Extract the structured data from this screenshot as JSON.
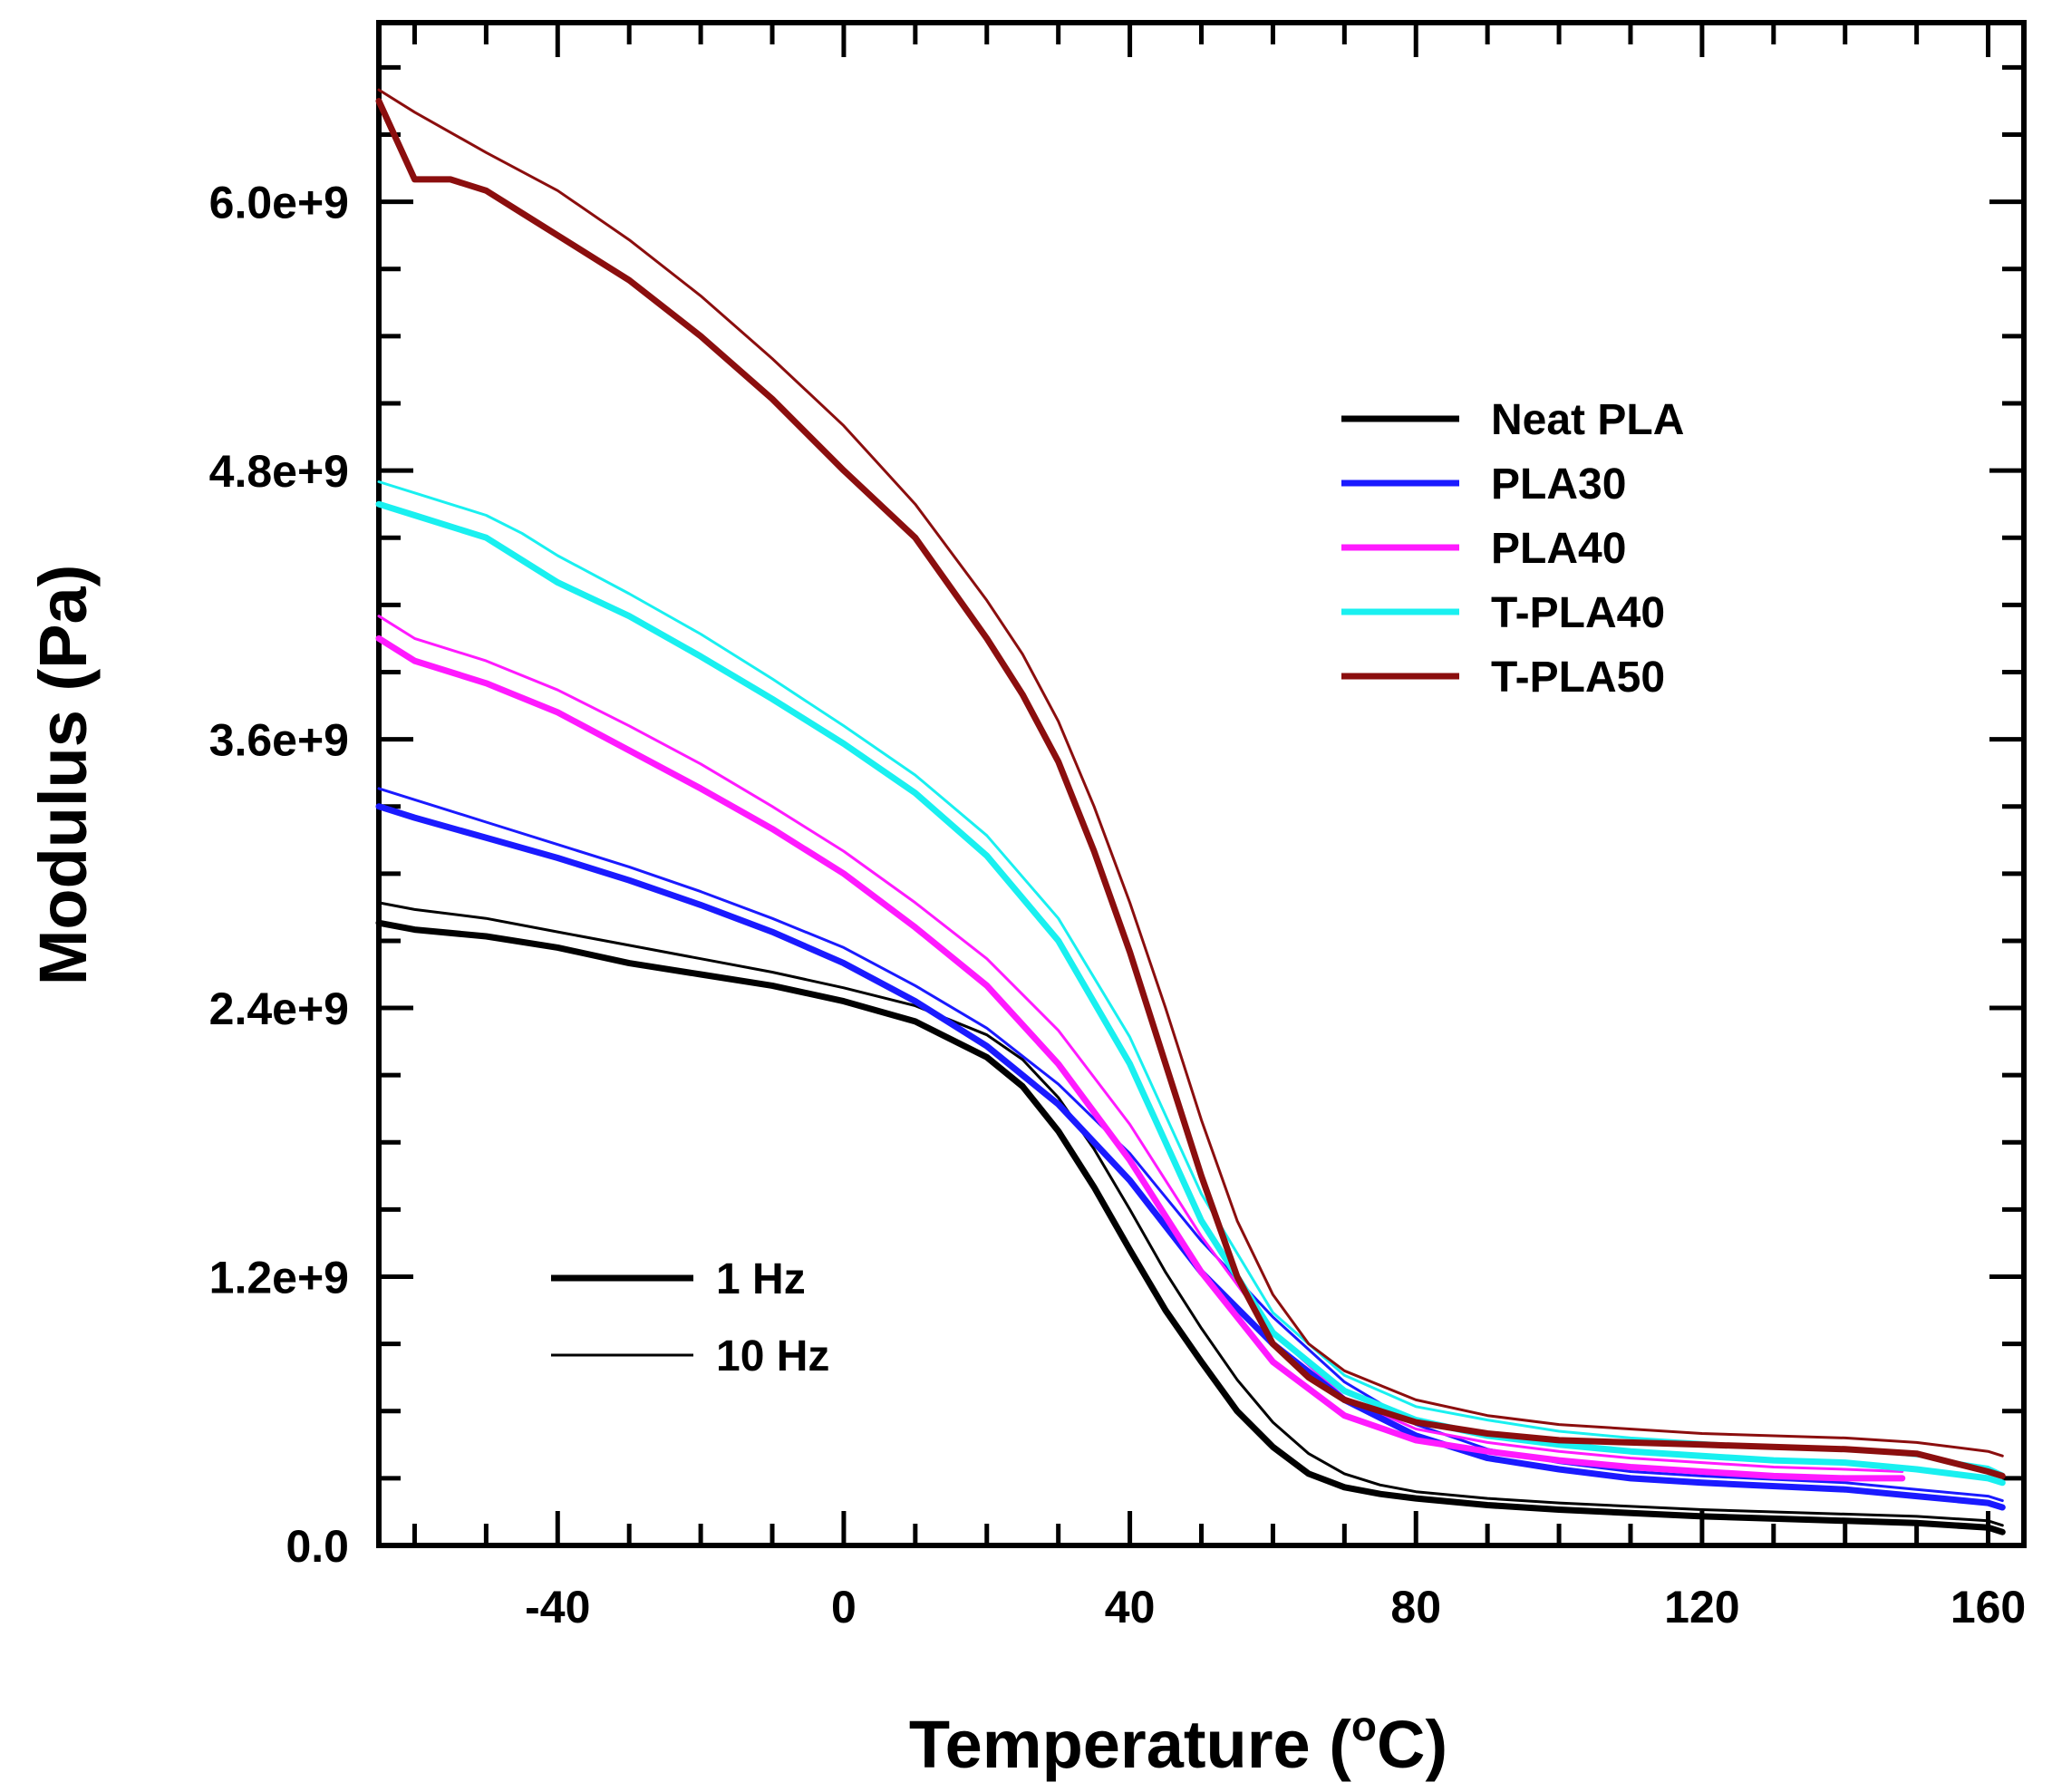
{
  "chart_data": {
    "type": "line",
    "title": "",
    "xlabel_main": "Temperature (",
    "xlabel_sup": "o",
    "xlabel_tail": "C)",
    "ylabel": "Modulus (Pa)",
    "xlim": [
      -65,
      165
    ],
    "ylim": [
      0,
      6800000000.0
    ],
    "x_ticks": [
      -40,
      0,
      40,
      80,
      120,
      160
    ],
    "x_tick_labels": [
      "-40",
      "0",
      "40",
      "80",
      "120",
      "160"
    ],
    "y_ticks": [
      0,
      1200000000.0,
      2400000000.0,
      3600000000.0,
      4800000000.0,
      6000000000.0
    ],
    "y_tick_labels": [
      "0.0",
      "1.2e+9",
      "2.4e+9",
      "3.6e+9",
      "4.8e+9",
      "6.0e+9"
    ],
    "legend_materials": [
      {
        "label": "Neat PLA",
        "color": "#000000"
      },
      {
        "label": "PLA30",
        "color": "#1a1aff"
      },
      {
        "label": "PLA40",
        "color": "#ff1aff"
      },
      {
        "label": "T-PLA40",
        "color": "#19f0f0"
      },
      {
        "label": "T-PLA50",
        "color": "#8b0e0e"
      }
    ],
    "legend_frequency": [
      {
        "label": "1 Hz",
        "style": "thick"
      },
      {
        "label": "10 Hz",
        "style": "thin"
      }
    ],
    "series": [
      {
        "name": "Neat PLA",
        "frequency": "1 Hz",
        "color": "#000000",
        "x": [
          -65,
          -60,
          -50,
          -40,
          -30,
          -20,
          -10,
          0,
          10,
          20,
          25,
          30,
          35,
          40,
          45,
          50,
          55,
          60,
          65,
          70,
          75,
          80,
          90,
          100,
          120,
          140,
          150,
          160,
          162
        ],
        "values": [
          2780000000.0,
          2750000000.0,
          2720000000.0,
          2670000000.0,
          2600000000.0,
          2550000000.0,
          2500000000.0,
          2430000000.0,
          2340000000.0,
          2180000000.0,
          2050000000.0,
          1850000000.0,
          1600000000.0,
          1320000000.0,
          1050000000.0,
          820000000.0,
          600000000.0,
          440000000.0,
          320000000.0,
          260000000.0,
          230000000.0,
          210000000.0,
          180000000.0,
          160000000.0,
          130000000.0,
          110000000.0,
          100000000.0,
          80000000.0,
          60000000.0
        ]
      },
      {
        "name": "Neat PLA",
        "frequency": "10 Hz",
        "color": "#000000",
        "x": [
          -65,
          -60,
          -50,
          -40,
          -30,
          -20,
          -10,
          0,
          10,
          20,
          25,
          30,
          35,
          40,
          45,
          50,
          55,
          60,
          65,
          70,
          75,
          80,
          90,
          100,
          120,
          140,
          150,
          160,
          162
        ],
        "values": [
          2870000000.0,
          2840000000.0,
          2800000000.0,
          2740000000.0,
          2680000000.0,
          2620000000.0,
          2560000000.0,
          2490000000.0,
          2410000000.0,
          2280000000.0,
          2170000000.0,
          2000000000.0,
          1770000000.0,
          1500000000.0,
          1220000000.0,
          970000000.0,
          740000000.0,
          550000000.0,
          410000000.0,
          320000000.0,
          270000000.0,
          240000000.0,
          210000000.0,
          190000000.0,
          160000000.0,
          140000000.0,
          130000000.0,
          110000000.0,
          90000000.0
        ]
      },
      {
        "name": "PLA30",
        "frequency": "1 Hz",
        "color": "#1a1aff",
        "x": [
          -65,
          -60,
          -50,
          -40,
          -30,
          -20,
          -10,
          0,
          10,
          20,
          30,
          40,
          50,
          60,
          70,
          80,
          90,
          100,
          110,
          120,
          140,
          150,
          160,
          162
        ],
        "values": [
          3300000000.0,
          3250000000.0,
          3160000000.0,
          3070000000.0,
          2970000000.0,
          2860000000.0,
          2740000000.0,
          2600000000.0,
          2430000000.0,
          2230000000.0,
          1970000000.0,
          1630000000.0,
          1220000000.0,
          900000000.0,
          650000000.0,
          490000000.0,
          390000000.0,
          340000000.0,
          300000000.0,
          280000000.0,
          250000000.0,
          220000000.0,
          190000000.0,
          170000000.0
        ]
      },
      {
        "name": "PLA30",
        "frequency": "10 Hz",
        "color": "#1a1aff",
        "x": [
          -65,
          -60,
          -50,
          -40,
          -30,
          -20,
          -10,
          0,
          10,
          20,
          30,
          40,
          50,
          60,
          70,
          80,
          90,
          100,
          110,
          120,
          140,
          150,
          160,
          162
        ],
        "values": [
          3380000000.0,
          3330000000.0,
          3230000000.0,
          3130000000.0,
          3030000000.0,
          2920000000.0,
          2800000000.0,
          2670000000.0,
          2500000000.0,
          2310000000.0,
          2060000000.0,
          1750000000.0,
          1360000000.0,
          1020000000.0,
          730000000.0,
          540000000.0,
          430000000.0,
          370000000.0,
          330000000.0,
          310000000.0,
          280000000.0,
          250000000.0,
          220000000.0,
          200000000.0
        ]
      },
      {
        "name": "PLA40",
        "frequency": "1 Hz",
        "color": "#ff1aff",
        "x": [
          -65,
          -60,
          -50,
          -40,
          -30,
          -20,
          -10,
          0,
          10,
          20,
          30,
          40,
          50,
          60,
          70,
          80,
          90,
          100,
          110,
          120,
          130,
          140,
          148
        ],
        "values": [
          4050000000.0,
          3950000000.0,
          3850000000.0,
          3720000000.0,
          3550000000.0,
          3380000000.0,
          3200000000.0,
          3000000000.0,
          2760000000.0,
          2500000000.0,
          2150000000.0,
          1720000000.0,
          1220000000.0,
          820000000.0,
          580000000.0,
          470000000.0,
          420000000.0,
          380000000.0,
          350000000.0,
          330000000.0,
          310000000.0,
          300000000.0,
          300000000.0
        ]
      },
      {
        "name": "PLA40",
        "frequency": "10 Hz",
        "color": "#ff1aff",
        "x": [
          -65,
          -60,
          -50,
          -40,
          -30,
          -20,
          -10,
          0,
          10,
          20,
          30,
          40,
          50,
          60,
          70,
          80,
          90,
          100,
          110,
          120,
          130,
          140,
          148
        ],
        "values": [
          4150000000.0,
          4050000000.0,
          3950000000.0,
          3820000000.0,
          3660000000.0,
          3490000000.0,
          3300000000.0,
          3100000000.0,
          2870000000.0,
          2620000000.0,
          2300000000.0,
          1880000000.0,
          1380000000.0,
          950000000.0,
          660000000.0,
          520000000.0,
          460000000.0,
          420000000.0,
          390000000.0,
          370000000.0,
          350000000.0,
          340000000.0,
          330000000.0
        ]
      },
      {
        "name": "T-PLA40",
        "frequency": "1 Hz",
        "color": "#19f0f0",
        "x": [
          -65,
          -60,
          -50,
          -45,
          -40,
          -30,
          -20,
          -10,
          0,
          10,
          20,
          30,
          40,
          50,
          60,
          70,
          80,
          90,
          100,
          110,
          120,
          130,
          140,
          150,
          160,
          162
        ],
        "values": [
          4650000000.0,
          4600000000.0,
          4500000000.0,
          4400000000.0,
          4300000000.0,
          4150000000.0,
          3970000000.0,
          3780000000.0,
          3580000000.0,
          3360000000.0,
          3080000000.0,
          2700000000.0,
          2150000000.0,
          1450000000.0,
          950000000.0,
          690000000.0,
          560000000.0,
          490000000.0,
          450000000.0,
          420000000.0,
          400000000.0,
          380000000.0,
          370000000.0,
          340000000.0,
          300000000.0,
          280000000.0
        ]
      },
      {
        "name": "T-PLA40",
        "frequency": "10 Hz",
        "color": "#19f0f0",
        "x": [
          -65,
          -60,
          -50,
          -45,
          -40,
          -30,
          -20,
          -10,
          0,
          10,
          20,
          30,
          40,
          50,
          60,
          70,
          80,
          90,
          100,
          110,
          120,
          130,
          140,
          150,
          160,
          162
        ],
        "values": [
          4750000000.0,
          4700000000.0,
          4600000000.0,
          4520000000.0,
          4420000000.0,
          4250000000.0,
          4070000000.0,
          3870000000.0,
          3660000000.0,
          3440000000.0,
          3170000000.0,
          2800000000.0,
          2270000000.0,
          1570000000.0,
          1040000000.0,
          760000000.0,
          620000000.0,
          560000000.0,
          510000000.0,
          480000000.0,
          460000000.0,
          440000000.0,
          430000000.0,
          400000000.0,
          350000000.0,
          320000000.0
        ]
      },
      {
        "name": "T-PLA50",
        "frequency": "1 Hz",
        "color": "#8b0e0e",
        "x": [
          -65,
          -60,
          -55,
          -50,
          -45,
          -40,
          -30,
          -20,
          -10,
          0,
          10,
          20,
          25,
          30,
          35,
          40,
          45,
          50,
          55,
          60,
          65,
          70,
          80,
          90,
          100,
          120,
          140,
          150,
          160,
          162
        ],
        "values": [
          6450000000.0,
          6100000000.0,
          6100000000.0,
          6050000000.0,
          5950000000.0,
          5850000000.0,
          5650000000.0,
          5400000000.0,
          5120000000.0,
          4800000000.0,
          4500000000.0,
          4050000000.0,
          3800000000.0,
          3500000000.0,
          3100000000.0,
          2650000000.0,
          2150000000.0,
          1650000000.0,
          1200000000.0,
          900000000.0,
          750000000.0,
          650000000.0,
          550000000.0,
          500000000.0,
          470000000.0,
          450000000.0,
          430000000.0,
          410000000.0,
          330000000.0,
          310000000.0
        ]
      },
      {
        "name": "T-PLA50",
        "frequency": "10 Hz",
        "color": "#8b0e0e",
        "x": [
          -65,
          -60,
          -50,
          -40,
          -30,
          -20,
          -10,
          0,
          10,
          20,
          25,
          30,
          35,
          40,
          45,
          50,
          55,
          60,
          65,
          70,
          80,
          90,
          100,
          120,
          140,
          150,
          160,
          162
        ],
        "values": [
          6500000000.0,
          6400000000.0,
          6220000000.0,
          6050000000.0,
          5830000000.0,
          5580000000.0,
          5300000000.0,
          5000000000.0,
          4650000000.0,
          4220000000.0,
          3980000000.0,
          3680000000.0,
          3300000000.0,
          2870000000.0,
          2400000000.0,
          1900000000.0,
          1450000000.0,
          1120000000.0,
          900000000.0,
          780000000.0,
          650000000.0,
          580000000.0,
          540000000.0,
          500000000.0,
          480000000.0,
          460000000.0,
          420000000.0,
          400000000.0
        ]
      }
    ]
  }
}
